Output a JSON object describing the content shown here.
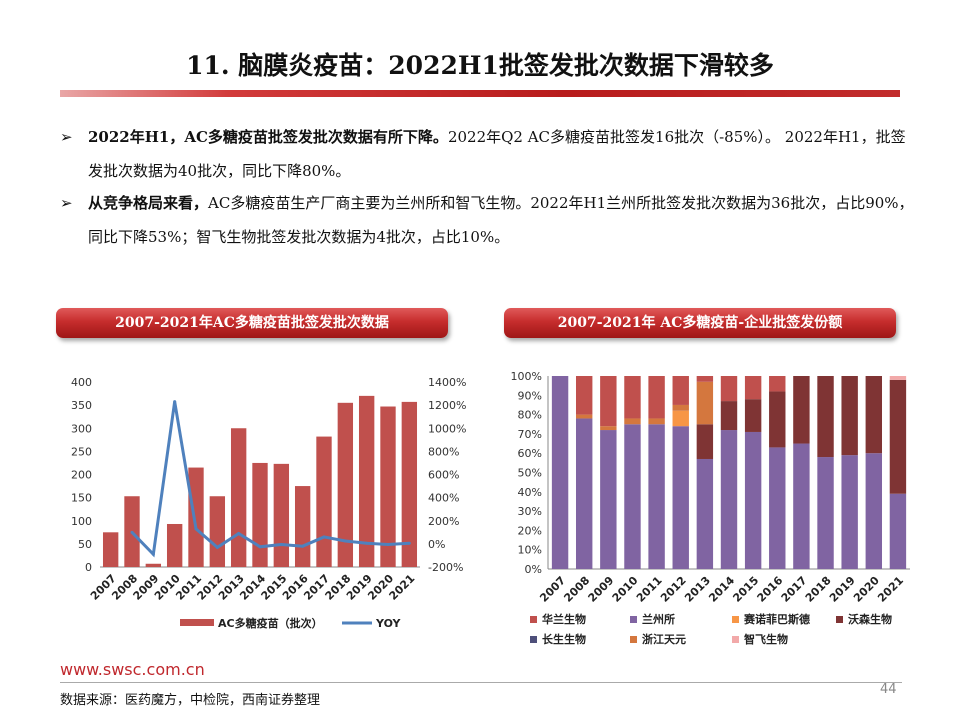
{
  "header": {
    "title": "11. 脑膜炎疫苗：2022H1批签发批次数据下滑较多"
  },
  "bullets": [
    {
      "arrow": "➢",
      "bold": "2022年H1，AC多糖疫苗批签发批次数据有所下降。",
      "rest": "2022年Q2 AC多糖疫苗批签发16批次（-85%）。 2022年H1，批签发批次数据为40批次，同比下降80%。"
    },
    {
      "arrow": "➢",
      "bold": "从竞争格局来看，",
      "rest": "AC多糖疫苗生产厂商主要为兰州所和智飞生物。2022年H1兰州所批签发批次数据为36批次，占比90%，同比下降53%；智飞生物批签发批次数据为4批次，占比10%。"
    }
  ],
  "chart_data": [
    {
      "type": "bar",
      "title": "2007-2021年AC多糖疫苗批签发批次数据",
      "categories": [
        "2007",
        "2008",
        "2009",
        "2010",
        "2011",
        "2012",
        "2013",
        "2014",
        "2015",
        "2016",
        "2017",
        "2018",
        "2019",
        "2020",
        "2021"
      ],
      "series": [
        {
          "name": "AC多糖疫苗（批次）",
          "type": "bar",
          "axis": "left",
          "color": "#c0504d",
          "values": [
            75,
            153,
            7,
            93,
            215,
            153,
            300,
            225,
            223,
            175,
            282,
            355,
            370,
            347,
            357
          ]
        },
        {
          "name": "YOY",
          "type": "line",
          "axis": "right",
          "color": "#4f81bd",
          "values": [
            null,
            100,
            -90,
            1230,
            130,
            -30,
            90,
            -25,
            -5,
            -20,
            60,
            25,
            5,
            -5,
            5
          ]
        }
      ],
      "left_axis": {
        "ticks": [
          "0",
          "50",
          "100",
          "150",
          "200",
          "250",
          "300",
          "350",
          "400"
        ],
        "ylim": [
          0,
          400
        ]
      },
      "right_axis": {
        "ticks": [
          "-200%",
          "0%",
          "200%",
          "400%",
          "600%",
          "800%",
          "1000%",
          "1200%",
          "1400%"
        ],
        "ylim": [
          -200,
          1400
        ]
      },
      "legend_position": "bottom"
    },
    {
      "type": "bar",
      "stacked": true,
      "title": "2007-2021年 AC多糖疫苗-企业批签发份额",
      "categories": [
        "2007",
        "2008",
        "2009",
        "2010",
        "2011",
        "2012",
        "2013",
        "2014",
        "2015",
        "2016",
        "2017",
        "2018",
        "2019",
        "2020",
        "2021"
      ],
      "y_ticks": [
        "0%",
        "10%",
        "20%",
        "30%",
        "40%",
        "50%",
        "60%",
        "70%",
        "80%",
        "90%",
        "100%"
      ],
      "ylim": [
        0,
        100
      ],
      "series": [
        {
          "name": "兰州所",
          "color": "#8064a2",
          "values": [
            100,
            78,
            72,
            75,
            75,
            74,
            57,
            72,
            71,
            63,
            65,
            58,
            59,
            60,
            39
          ]
        },
        {
          "name": "赛诺菲巴斯德",
          "color": "#f79646",
          "values": [
            0,
            0,
            0,
            0,
            0,
            8,
            0,
            0,
            0,
            0,
            0,
            0,
            0,
            0,
            0
          ]
        },
        {
          "name": "沃森生物",
          "color": "#7f3434",
          "values": [
            0,
            0,
            0,
            0,
            0,
            0,
            18,
            15,
            17,
            29,
            35,
            42,
            41,
            40,
            59
          ]
        },
        {
          "name": "浙江天元",
          "color": "#d4773e",
          "values": [
            0,
            2,
            2,
            3,
            3,
            3,
            22,
            0,
            0,
            0,
            0,
            0,
            0,
            0,
            0
          ]
        },
        {
          "name": "华兰生物",
          "color": "#c0504d",
          "values": [
            0,
            20,
            26,
            22,
            22,
            15,
            3,
            13,
            12,
            8,
            0,
            0,
            0,
            0,
            0
          ]
        },
        {
          "name": "智飞生物",
          "color": "#f2a9a9",
          "values": [
            0,
            0,
            0,
            0,
            0,
            0,
            0,
            0,
            0,
            0,
            0,
            0,
            0,
            0,
            2
          ]
        }
      ],
      "legend_rows": [
        [
          "华兰生物",
          "兰州所",
          "赛诺菲巴斯德",
          "沃森生物"
        ],
        [
          "长生生物",
          "浙江天元",
          "智飞生物"
        ]
      ],
      "legend_colors": {
        "华兰生物": "#c0504d",
        "兰州所": "#8064a2",
        "赛诺菲巴斯德": "#f79646",
        "沃森生物": "#7f3434",
        "长生生物": "#4e4f7a",
        "浙江天元": "#d4773e",
        "智飞生物": "#f2a9a9"
      },
      "legend_position": "bottom"
    }
  ],
  "footer": {
    "url": "www.swsc.com.cn",
    "source": "数据来源：医药魔方，中检院，西南证券整理",
    "page": "44"
  }
}
